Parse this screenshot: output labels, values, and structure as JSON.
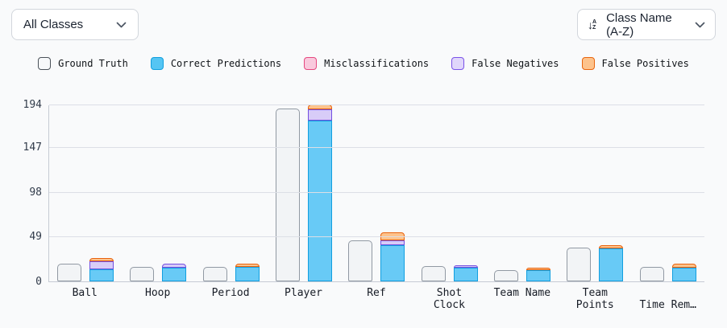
{
  "controls": {
    "class_filter": {
      "value": "All Classes"
    },
    "sort": {
      "value": "Class Name (A-Z)"
    }
  },
  "legend": [
    {
      "label": "Ground Truth",
      "fill": "#f6f8fa",
      "border": "#4a5159"
    },
    {
      "label": "Correct Predictions",
      "fill": "#55c5f3",
      "border": "#119fde"
    },
    {
      "label": "Misclassifications",
      "fill": "#f9c9dd",
      "border": "#e5487f"
    },
    {
      "label": "False Negatives",
      "fill": "#e0d6fb",
      "border": "#7a52e8"
    },
    {
      "label": "False Positives",
      "fill": "#fdc38c",
      "border": "#e8650e"
    }
  ],
  "chart_data": {
    "type": "bar",
    "subtype": "grouped: ground-truth bar next to stacked predictions bar",
    "categories": [
      "Ball",
      "Hoop",
      "Period",
      "Player",
      "Ref",
      "Shot Clock",
      "Team Name",
      "Team Points",
      "Time Rem…"
    ],
    "category_label_lines": [
      [
        "Ball"
      ],
      [
        "Hoop"
      ],
      [
        "Period"
      ],
      [
        "Player"
      ],
      [
        "Ref"
      ],
      [
        "Shot",
        "Clock"
      ],
      [
        "Team Name"
      ],
      [
        "Team",
        "Points"
      ],
      [
        "",
        "Time Rem…"
      ]
    ],
    "series": [
      {
        "name": "Ground Truth",
        "role": "separate-bar",
        "values": [
          19,
          16,
          16,
          190,
          45,
          17,
          12,
          37,
          16
        ],
        "fill": "#f2f4f6",
        "border": "#9199a3"
      },
      {
        "name": "Correct Predictions",
        "role": "stack",
        "values": [
          13,
          15,
          16,
          176,
          40,
          15,
          12,
          36,
          15
        ],
        "fill": "#68caf6",
        "border": "#119fe0"
      },
      {
        "name": "Misclassifications",
        "role": "stack",
        "values": [
          0,
          0,
          0,
          0,
          0,
          0,
          0,
          0,
          0
        ],
        "fill": "#f9c9dd",
        "border": "#e5487f"
      },
      {
        "name": "False Negatives",
        "role": "stack",
        "values": [
          9,
          4,
          0,
          13,
          5,
          3,
          0,
          0,
          0
        ],
        "fill": "#d8ccf8",
        "border": "#744fe0"
      },
      {
        "name": "False Positives",
        "role": "stack",
        "values": [
          4,
          0,
          3,
          5,
          9,
          0,
          3,
          4,
          4
        ],
        "fill": "#fdc38c",
        "border": "#e8620d"
      }
    ],
    "ylim": [
      0,
      194
    ],
    "yticks": [
      0,
      49,
      98,
      147,
      194
    ],
    "grid": true,
    "legend_position": "top"
  }
}
